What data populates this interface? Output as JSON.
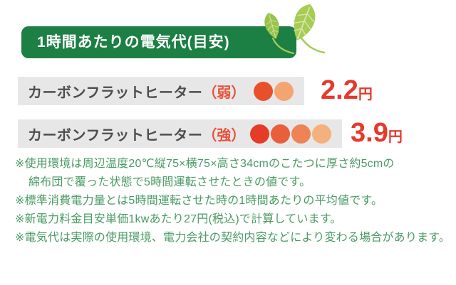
{
  "header": {
    "title": "1時間あたりの電気代(目安)"
  },
  "decoration": {
    "leaves_icon": "two-green-leaves"
  },
  "colors": {
    "banner_green": "#1c7f43",
    "leaf_green": "#a6cc53",
    "leaf_green_dark": "#97c24c",
    "leaf_vein": "#d8e7ab",
    "bar_gray": "#e7e7e7",
    "label_gray": "#4d4d4d",
    "mode_red": "#e8503c",
    "price_red": "#e7392b",
    "note_green": "#4a9b64"
  },
  "rows": [
    {
      "label": "カーボンフラットヒーター",
      "mode": "（弱）",
      "level_dots": [
        "#e8502c",
        "#f4a470"
      ],
      "price": "2.2",
      "unit": "円"
    },
    {
      "label": "カーボンフラットヒーター",
      "mode": "（強）",
      "level_dots": [
        "#e63b26",
        "#e95f3b",
        "#ef8355",
        "#f5b17d"
      ],
      "price": "3.9",
      "unit": "円"
    }
  ],
  "footnotes": {
    "lines": [
      {
        "text": "※使用環境は周辺温度20℃縦75×横75×高さ34cmのこたつに厚さ約5cmの",
        "indent": false
      },
      {
        "text": "綿布団で覆った状態で5時間運転させたときの値です。",
        "indent": true
      },
      {
        "text": "※標準消費電力量とは5時間運転させた時の1時間あたりの平均値です。",
        "indent": false
      },
      {
        "text": "※新電力料金目安単価1kwあたり27円(税込)で計算しています。",
        "indent": false
      },
      {
        "text": "※電気代は実際の使用環境、電力会社の契約内容などにより変わる場合があります。",
        "indent": false
      }
    ]
  }
}
